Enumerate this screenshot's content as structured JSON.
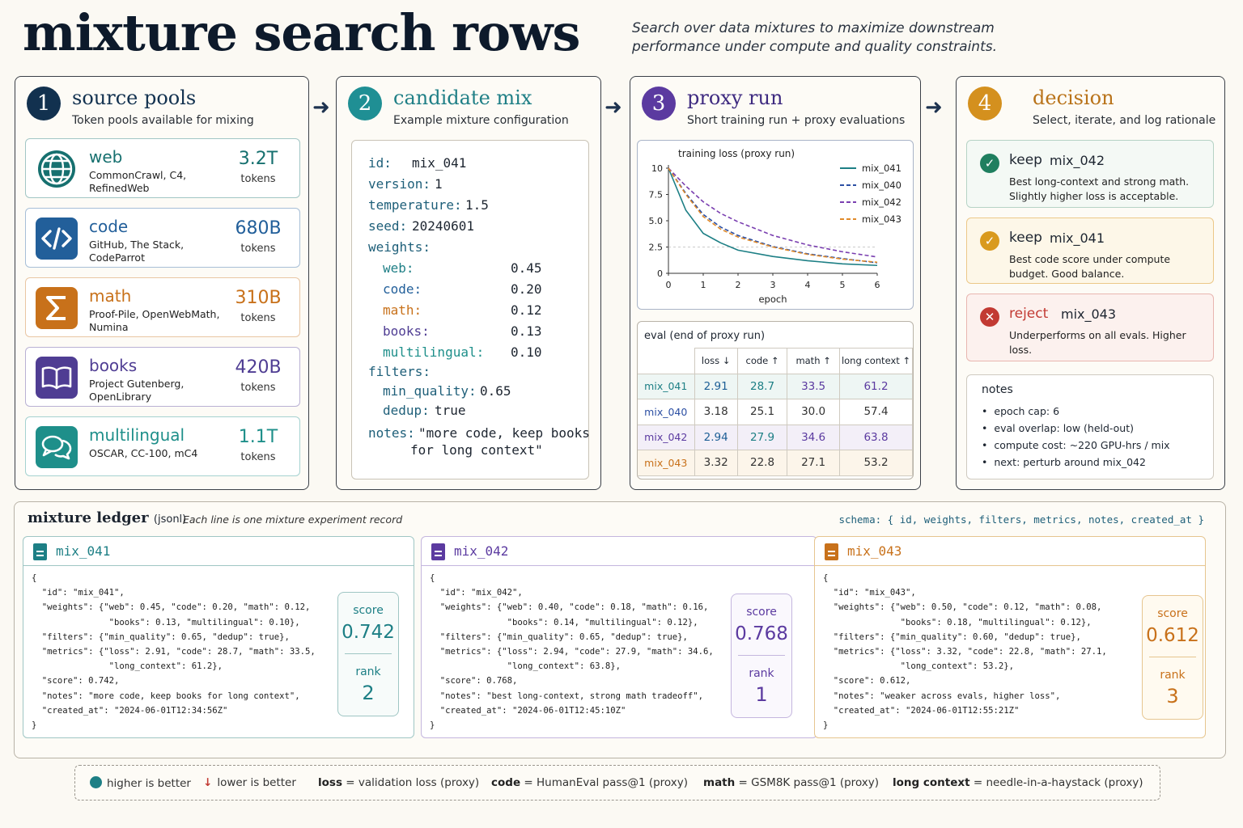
{
  "header": {
    "title": "mixture search rows",
    "subtitle": "Search over data mixtures to maximize downstream performance under compute and quality constraints."
  },
  "steps": [
    {
      "num": "1",
      "title": "source pools",
      "sub": "Token pools available for mixing",
      "color": "#12314f"
    },
    {
      "num": "2",
      "title": "candidate mix",
      "sub": "Example mixture configuration",
      "color": "#1f8f94"
    },
    {
      "num": "3",
      "title": "proxy run",
      "sub": "Short training run + proxy evaluations",
      "color": "#5b3aa0"
    },
    {
      "num": "4",
      "title": "decision",
      "sub": "Select, iterate, and log rationale",
      "color": "#d4901e"
    }
  ],
  "pools": [
    {
      "name": "web",
      "desc": "CommonCrawl, C4, RefinedWeb",
      "count": "3.2T",
      "unit": "tokens",
      "icon": "globe-icon",
      "color": "#16706f"
    },
    {
      "name": "code",
      "desc": "GitHub, The Stack, CodeParrot",
      "count": "680B",
      "unit": "tokens",
      "icon": "code-icon",
      "color": "#225f9a"
    },
    {
      "name": "math",
      "desc": "Proof-Pile, OpenWebMath, Numina",
      "count": "310B",
      "unit": "tokens",
      "icon": "sigma-icon",
      "color": "#c8711a"
    },
    {
      "name": "books",
      "desc": "Project Gutenberg, OpenLibrary",
      "count": "420B",
      "unit": "tokens",
      "icon": "book-icon",
      "color": "#4f3d93"
    },
    {
      "name": "multilingual",
      "desc": "OSCAR, CC-100, mC4",
      "count": "1.1T",
      "unit": "tokens",
      "icon": "speech-bubbles-icon",
      "color": "#1e8f8a"
    }
  ],
  "candidate": {
    "id": "mix_041",
    "version": "1",
    "temperature": "1.5",
    "seed": "20240601",
    "weights": [
      {
        "key": "web",
        "value": "0.45",
        "color": "#1f7f86"
      },
      {
        "key": "code",
        "value": "0.20",
        "color": "#225f9a"
      },
      {
        "key": "math",
        "value": "0.12",
        "color": "#c8711a"
      },
      {
        "key": "books",
        "value": "0.13",
        "color": "#4f3d93"
      },
      {
        "key": "multilingual",
        "value": "0.10",
        "color": "#1e8f8a"
      }
    ],
    "min_quality": "0.65",
    "dedup": "true",
    "notes_line1": "\"more code, keep books",
    "notes_line2": "for long context\""
  },
  "labels": {
    "id": "id:",
    "version": "version:",
    "temperature": "temperature:",
    "seed": "seed:",
    "weights": "weights:",
    "filters": "filters:",
    "min_quality": "min_quality:",
    "dedup": "dedup:",
    "notes": "notes:"
  },
  "chart_data": {
    "type": "line",
    "title": "training loss (proxy run)",
    "xlabel": "epoch",
    "ylabel": "",
    "xlim": [
      0,
      6
    ],
    "ylim": [
      0,
      10
    ],
    "xticks": [
      "0",
      "1",
      "2",
      "3",
      "4",
      "5",
      "6"
    ],
    "yticks": [
      "0",
      "2.5",
      "5.0",
      "7.5",
      "10"
    ],
    "x": [
      0,
      0.5,
      1,
      1.5,
      2,
      3,
      4,
      5,
      6
    ],
    "series": [
      {
        "name": "mix_041",
        "color": "#1d7f85",
        "dash": "solid",
        "values": [
          10,
          6.0,
          3.8,
          2.9,
          2.2,
          1.6,
          1.2,
          0.9,
          0.75
        ]
      },
      {
        "name": "mix_040",
        "color": "#2c4fa3",
        "dash": "dashed",
        "values": [
          10,
          7.6,
          5.6,
          4.4,
          3.6,
          2.55,
          1.85,
          1.4,
          1.0
        ]
      },
      {
        "name": "mix_042",
        "color": "#7a3fb0",
        "dash": "dashed",
        "values": [
          10,
          8.3,
          6.8,
          5.7,
          4.9,
          3.6,
          2.7,
          2.05,
          1.55
        ]
      },
      {
        "name": "mix_043",
        "color": "#e08a2a",
        "dash": "dashed",
        "values": [
          10,
          7.5,
          5.4,
          4.2,
          3.45,
          2.5,
          1.8,
          1.35,
          1.05
        ]
      }
    ],
    "legend": "top-right"
  },
  "eval": {
    "title": "eval (end of proxy run)",
    "headers": [
      "loss ↓",
      "code ↑",
      "math ↑",
      "long context ↑"
    ],
    "rows": [
      {
        "name": "mix_041",
        "name_color": "#1d7f85",
        "bold": true,
        "vals": [
          "2.91",
          "28.7",
          "33.5",
          "61.2"
        ],
        "colors": [
          "#1d5f96",
          "#1d7f85",
          "#5b3aa0",
          "#5b3aa0"
        ],
        "bg": "#eef6f4"
      },
      {
        "name": "mix_040",
        "name_color": "#2c4fa3",
        "bold": false,
        "vals": [
          "3.18",
          "25.1",
          "30.0",
          "57.4"
        ],
        "colors": [
          "#333",
          "#333",
          "#333",
          "#333"
        ],
        "bg": "#ffffff"
      },
      {
        "name": "mix_042",
        "name_color": "#5b3aa0",
        "bold": true,
        "vals": [
          "2.94",
          "27.9",
          "34.6",
          "63.8"
        ],
        "colors": [
          "#1d5f96",
          "#1d7f85",
          "#5b3aa0",
          "#5b3aa0"
        ],
        "bg": "#f3eff8"
      },
      {
        "name": "mix_043",
        "name_color": "#c8711a",
        "bold": false,
        "vals": [
          "3.32",
          "22.8",
          "27.1",
          "53.2"
        ],
        "colors": [
          "#333",
          "#333",
          "#333",
          "#333"
        ],
        "bg": "#fcf5ea"
      }
    ]
  },
  "decisions": [
    {
      "status": "keep",
      "mix": "mix_042",
      "text": "Best long-context and strong math. Slightly higher loss is acceptable.",
      "color": "#1f7f5f",
      "border": "#b6d3c5",
      "bg": "#f4f9f5",
      "icon": "check-icon"
    },
    {
      "status": "keep",
      "mix": "mix_041",
      "text": "Best code score under compute budget. Good balance.",
      "color": "#d99a1e",
      "border": "#ecc889",
      "bg": "#fdf7e8",
      "icon": "check-icon"
    },
    {
      "status": "reject",
      "mix": "mix_043",
      "text": "Underperforms on all evals. Higher loss.",
      "color": "#c23a33",
      "border": "#e8b6b0",
      "bg": "#fcf1ee",
      "icon": "x-icon"
    }
  ],
  "notes": {
    "title": "notes",
    "items": [
      "epoch cap: 6",
      "eval overlap: low (held-out)",
      "compute cost: ~220 GPU-hrs / mix",
      "next: perturb around mix_042"
    ]
  },
  "ledger": {
    "title": "mixture ledger",
    "format": "(jsonl)",
    "subtitle": "Each line is one mixture experiment record",
    "schema": "schema: { id, weights, filters, metrics, notes, created_at }",
    "score_label": "score",
    "rank_label": "rank",
    "records": [
      {
        "id": "mix_041",
        "color": "#1d7f85",
        "border": "#9fc6c4",
        "score": "0.742",
        "rank": "2",
        "json": "{\n  \"id\": \"mix_041\",\n  \"weights\": {\"web\": 0.45, \"code\": 0.20, \"math\": 0.12,\n               \"books\": 0.13, \"multilingual\": 0.10},\n  \"filters\": {\"min_quality\": 0.65, \"dedup\": true},\n  \"metrics\": {\"loss\": 2.91, \"code\": 28.7, \"math\": 33.5,\n               \"long_context\": 61.2},\n  \"score\": 0.742,\n  \"notes\": \"more code, keep books for long context\",\n  \"created_at\": \"2024-06-01T12:34:56Z\"\n}"
      },
      {
        "id": "mix_042",
        "color": "#5b3aa0",
        "border": "#c4b6de",
        "score": "0.768",
        "rank": "1",
        "json": "{\n  \"id\": \"mix_042\",\n  \"weights\": {\"web\": 0.40, \"code\": 0.18, \"math\": 0.16,\n               \"books\": 0.14, \"multilingual\": 0.12},\n  \"filters\": {\"min_quality\": 0.65, \"dedup\": true},\n  \"metrics\": {\"loss\": 2.94, \"code\": 27.9, \"math\": 34.6,\n               \"long_context\": 63.8},\n  \"score\": 0.768,\n  \"notes\": \"best long-context, strong math tradeoff\",\n  \"created_at\": \"2024-06-01T12:45:10Z\"\n}"
      },
      {
        "id": "mix_043",
        "color": "#c8711a",
        "border": "#e6c58f",
        "score": "0.612",
        "rank": "3",
        "json": "{\n  \"id\": \"mix_043\",\n  \"weights\": {\"web\": 0.50, \"code\": 0.12, \"math\": 0.08,\n               \"books\": 0.18, \"multilingual\": 0.12},\n  \"filters\": {\"min_quality\": 0.60, \"dedup\": true},\n  \"metrics\": {\"loss\": 3.32, \"code\": 22.8, \"math\": 27.1,\n               \"long_context\": 53.2},\n  \"score\": 0.612,\n  \"notes\": \"weaker across evals, higher loss\",\n  \"created_at\": \"2024-06-01T12:55:21Z\"\n}"
      }
    ]
  },
  "legend": {
    "higher": "higher is better",
    "lower": "lower is better",
    "loss_key": "loss",
    "loss_def": "= validation loss (proxy)",
    "code_key": "code",
    "code_def": "= HumanEval pass@1 (proxy)",
    "math_key": "math",
    "math_def": "= GSM8K pass@1 (proxy)",
    "lc_key": "long context",
    "lc_def": "= needle-in-a-haystack (proxy)"
  }
}
